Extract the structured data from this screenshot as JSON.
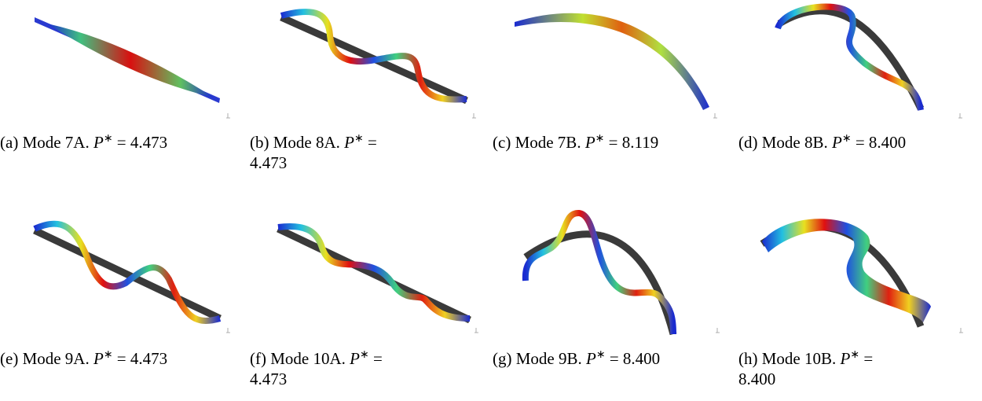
{
  "symbol": "P",
  "superscript": "∗",
  "equals": "=",
  "figures": [
    {
      "label": "(a)",
      "caption": "Mode 7A.",
      "value": "4.473"
    },
    {
      "label": "(b)",
      "caption": "Mode 8A.",
      "value": "4.473"
    },
    {
      "label": "(c)",
      "caption": "Mode 7B.",
      "value": "8.119"
    },
    {
      "label": "(d)",
      "caption": "Mode 8B.",
      "value": "8.400"
    },
    {
      "label": "(e)",
      "caption": "Mode 9A.",
      "value": "4.473"
    },
    {
      "label": "(f)",
      "caption": "Mode 10A.",
      "value": "4.473"
    },
    {
      "label": "(g)",
      "caption": "Mode 9B.",
      "value": "8.400"
    },
    {
      "label": "(h)",
      "caption": "Mode 10B.",
      "value": "8.400"
    }
  ]
}
